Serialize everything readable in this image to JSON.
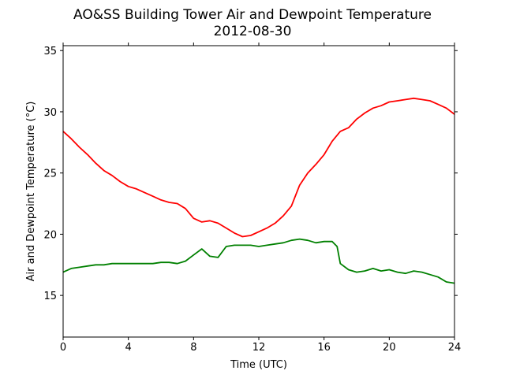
{
  "chart_data": {
    "type": "line",
    "title": "AO&SS Building Tower Air and Dewpoint Temperature",
    "subtitle": "2012-08-30",
    "xlabel": "Time (UTC)",
    "ylabel": "Air and Dewpoint Temperature (°C)",
    "xlim": [
      0,
      24
    ],
    "ylim": [
      11.6,
      35.4
    ],
    "xticks": [
      0,
      4,
      8,
      12,
      16,
      20,
      24
    ],
    "yticks": [
      15,
      20,
      25,
      30,
      35
    ],
    "grid": false,
    "series": [
      {
        "color": "#ff0000",
        "x": [
          0,
          0.5,
          1,
          1.5,
          2,
          2.5,
          3,
          3.5,
          4,
          4.5,
          5,
          5.5,
          6,
          6.5,
          7,
          7.5,
          8,
          8.5,
          9,
          9.5,
          10,
          10.5,
          11,
          11.5,
          12,
          12.5,
          13,
          13.5,
          14,
          14.5,
          15,
          15.5,
          16,
          16.5,
          17,
          17.5,
          18,
          18.5,
          19,
          19.5,
          20,
          20.5,
          21,
          21.5,
          22,
          22.5,
          23,
          23.5,
          24
        ],
        "y": [
          28.4,
          27.8,
          27.1,
          26.5,
          25.8,
          25.2,
          24.8,
          24.3,
          23.9,
          23.7,
          23.4,
          23.1,
          22.8,
          22.6,
          22.5,
          22.1,
          21.3,
          21.0,
          21.1,
          20.9,
          20.5,
          20.1,
          19.8,
          19.9,
          20.2,
          20.5,
          20.9,
          21.5,
          22.3,
          24.0,
          25.0,
          25.7,
          26.5,
          27.6,
          28.4,
          28.7,
          29.4,
          29.9,
          30.3,
          30.5,
          30.8,
          30.9,
          31.0,
          31.1,
          31.0,
          30.9,
          30.6,
          30.3,
          29.8
        ]
      },
      {
        "color": "#008000",
        "x": [
          0,
          0.5,
          1,
          1.5,
          2,
          2.5,
          3,
          3.5,
          4,
          4.5,
          5,
          5.5,
          6,
          6.5,
          7,
          7.5,
          8,
          8.5,
          9,
          9.5,
          10,
          10.5,
          11,
          11.5,
          12,
          12.5,
          13,
          13.5,
          14,
          14.5,
          15,
          15.5,
          16,
          16.5,
          16.8,
          17,
          17.5,
          18,
          18.5,
          19,
          19.5,
          20,
          20.5,
          21,
          21.5,
          22,
          22.5,
          23,
          23.5,
          24
        ],
        "y": [
          16.9,
          17.2,
          17.3,
          17.4,
          17.5,
          17.5,
          17.6,
          17.6,
          17.6,
          17.6,
          17.6,
          17.6,
          17.7,
          17.7,
          17.6,
          17.8,
          18.3,
          18.8,
          18.2,
          18.1,
          19.0,
          19.1,
          19.1,
          19.1,
          19.0,
          19.1,
          19.2,
          19.3,
          19.5,
          19.6,
          19.5,
          19.3,
          19.4,
          19.4,
          19.0,
          17.6,
          17.1,
          16.9,
          17.0,
          17.2,
          17.0,
          17.1,
          16.9,
          16.8,
          17.0,
          16.9,
          16.7,
          16.5,
          16.1,
          16.0
        ]
      }
    ]
  }
}
